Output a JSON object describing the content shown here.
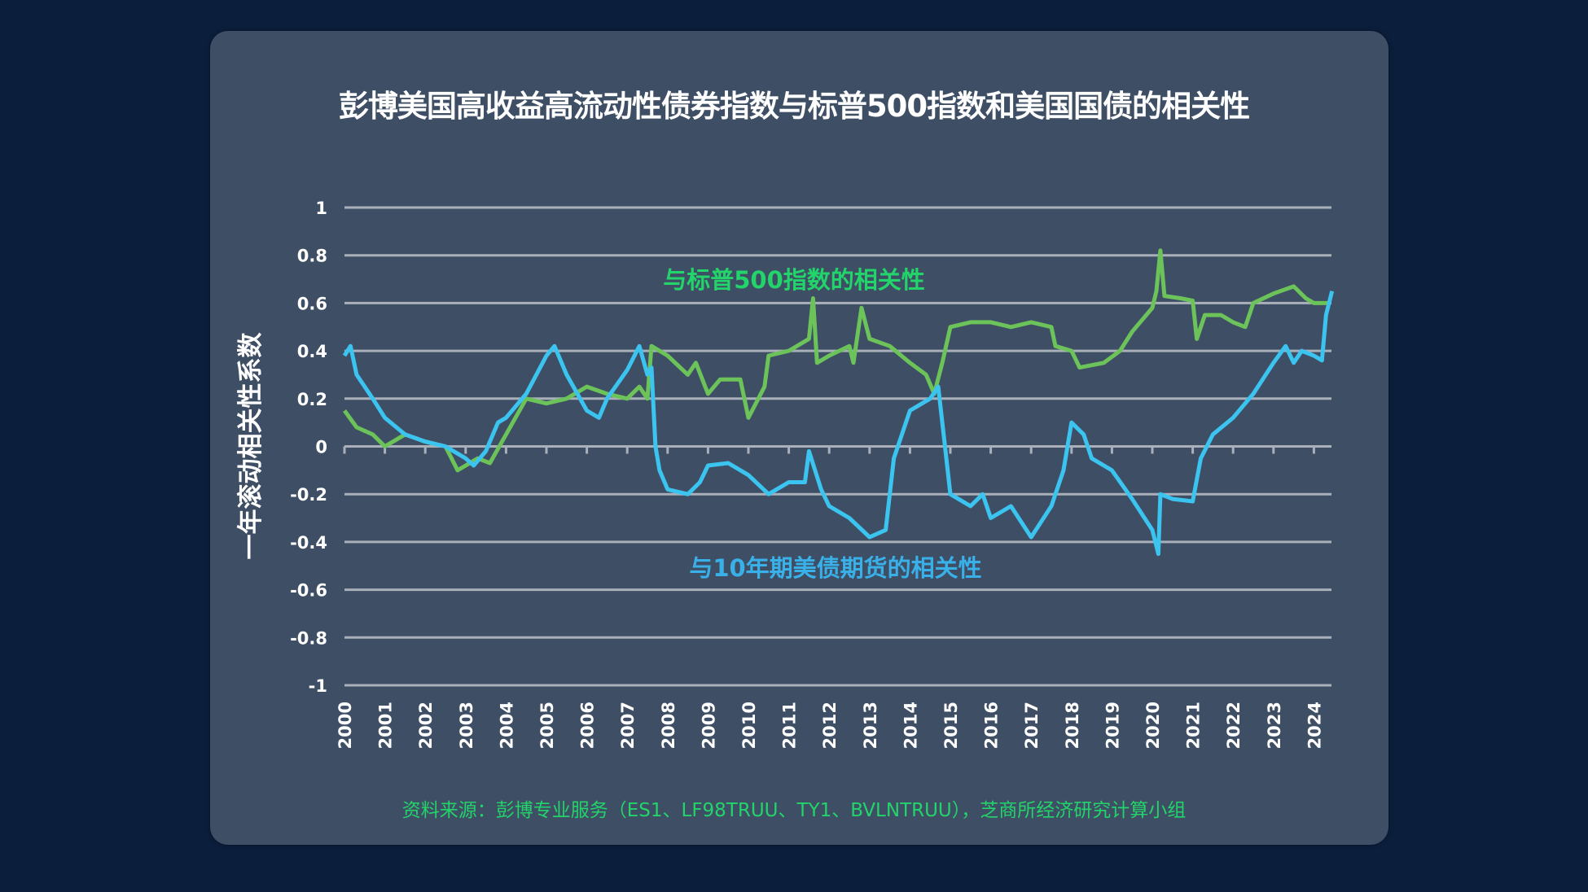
{
  "title": "彭博美国高收益高流动性债券指数与标普500指数和美国国债的相关性",
  "footnote": "资料来源：彭博专业服务（ES1、LF98TRUU、TY1、BVLNTRUU），芝商所经济研究计算小组",
  "chart_data": {
    "type": "line",
    "title": "彭博美国高收益高流动性债券指数与标普500指数和美国国债的相关性",
    "ylabel": "一年滚动相关性系数",
    "xlabel": "",
    "ylim": [
      -1,
      1
    ],
    "yticks": [
      "1",
      "0.8",
      "0.6",
      "0.4",
      "0.2",
      "0",
      "-0.2",
      "-0.4",
      "-0.6",
      "-0.8",
      "-1"
    ],
    "ytick_values": [
      1,
      0.8,
      0.6,
      0.4,
      0.2,
      0,
      -0.2,
      -0.4,
      -0.6,
      -0.8,
      -1
    ],
    "xticks": [
      "2000",
      "2001",
      "2002",
      "2003",
      "2004",
      "2005",
      "2006",
      "2007",
      "2008",
      "2009",
      "2010",
      "2011",
      "2012",
      "2013",
      "2014",
      "2015",
      "2016",
      "2017",
      "2018",
      "2019",
      "2020",
      "2021",
      "2022",
      "2023",
      "2024"
    ],
    "grid": true,
    "colors": {
      "sp500": "#6cc35a",
      "treasury": "#3cc4f0",
      "sp500_label": "#22d46a",
      "treasury_label": "#3ab0e8"
    },
    "series": [
      {
        "name": "与标普500指数的相关性",
        "x": [
          2000,
          2000.3,
          2000.7,
          2001,
          2001.5,
          2002,
          2002.5,
          2002.8,
          2003.3,
          2003.6,
          2004,
          2004.5,
          2005,
          2005.5,
          2006,
          2006.5,
          2007,
          2007.3,
          2007.5,
          2007.6,
          2008,
          2008.5,
          2008.7,
          2009,
          2009.3,
          2009.8,
          2010,
          2010.4,
          2010.5,
          2011,
          2011.5,
          2011.6,
          2011.7,
          2012,
          2012.5,
          2012.6,
          2012.8,
          2013,
          2013.5,
          2014,
          2014.4,
          2014.6,
          2014.8,
          2015,
          2015.5,
          2016,
          2016.5,
          2017,
          2017.5,
          2017.6,
          2018,
          2018.2,
          2018.8,
          2019.2,
          2019.5,
          2020,
          2020.1,
          2020.2,
          2020.3,
          2020.7,
          2021,
          2021.1,
          2021.3,
          2021.7,
          2022,
          2022.3,
          2022.5,
          2023,
          2023.5,
          2023.8,
          2024,
          2024.4
        ],
        "y": [
          0.15,
          0.08,
          0.05,
          0.0,
          0.05,
          0.02,
          0.0,
          -0.1,
          -0.05,
          -0.07,
          0.05,
          0.2,
          0.18,
          0.2,
          0.25,
          0.22,
          0.2,
          0.25,
          0.2,
          0.42,
          0.38,
          0.3,
          0.35,
          0.22,
          0.28,
          0.28,
          0.12,
          0.25,
          0.38,
          0.4,
          0.45,
          0.62,
          0.35,
          0.38,
          0.42,
          0.35,
          0.58,
          0.45,
          0.42,
          0.35,
          0.3,
          0.22,
          0.35,
          0.5,
          0.52,
          0.52,
          0.5,
          0.52,
          0.5,
          0.42,
          0.4,
          0.33,
          0.35,
          0.4,
          0.48,
          0.58,
          0.65,
          0.82,
          0.63,
          0.62,
          0.61,
          0.45,
          0.55,
          0.55,
          0.52,
          0.5,
          0.6,
          0.64,
          0.67,
          0.62,
          0.6,
          0.6
        ]
      },
      {
        "name": "与10年期美债期货的相关性",
        "x": [
          2000,
          2000.15,
          2000.3,
          2000.7,
          2001,
          2001.5,
          2002,
          2002.5,
          2003,
          2003.2,
          2003.5,
          2003.8,
          2004,
          2004.5,
          2005,
          2005.2,
          2005.5,
          2006,
          2006.3,
          2006.5,
          2007,
          2007.3,
          2007.5,
          2007.6,
          2007.7,
          2007.8,
          2008,
          2008.5,
          2008.8,
          2009,
          2009.5,
          2010,
          2010.5,
          2011,
          2011.4,
          2011.5,
          2011.8,
          2012,
          2012.5,
          2013,
          2013.4,
          2013.6,
          2014,
          2014.5,
          2014.7,
          2014.8,
          2015,
          2015.5,
          2015.8,
          2016,
          2016.5,
          2017,
          2017.5,
          2017.8,
          2018,
          2018.3,
          2018.5,
          2019,
          2019.5,
          2020,
          2020.15,
          2020.2,
          2020.5,
          2021,
          2021.2,
          2021.5,
          2022,
          2022.5,
          2023,
          2023.3,
          2023.5,
          2023.7,
          2024,
          2024.2,
          2024.3,
          2024.45
        ],
        "y": [
          0.38,
          0.42,
          0.3,
          0.2,
          0.12,
          0.05,
          0.02,
          0.0,
          -0.05,
          -0.08,
          -0.02,
          0.1,
          0.12,
          0.22,
          0.38,
          0.42,
          0.3,
          0.15,
          0.12,
          0.2,
          0.32,
          0.42,
          0.3,
          0.33,
          0.0,
          -0.1,
          -0.18,
          -0.2,
          -0.15,
          -0.08,
          -0.07,
          -0.12,
          -0.2,
          -0.15,
          -0.15,
          -0.02,
          -0.18,
          -0.25,
          -0.3,
          -0.38,
          -0.35,
          -0.05,
          0.15,
          0.2,
          0.25,
          0.1,
          -0.2,
          -0.25,
          -0.2,
          -0.3,
          -0.25,
          -0.38,
          -0.25,
          -0.1,
          0.1,
          0.05,
          -0.05,
          -0.1,
          -0.22,
          -0.35,
          -0.45,
          -0.2,
          -0.22,
          -0.23,
          -0.05,
          0.05,
          0.12,
          0.22,
          0.35,
          0.42,
          0.35,
          0.4,
          0.38,
          0.36,
          0.55,
          0.65
        ]
      }
    ],
    "annotations": [
      "与标普500指数的相关性",
      "与10年期美债期货的相关性"
    ]
  }
}
